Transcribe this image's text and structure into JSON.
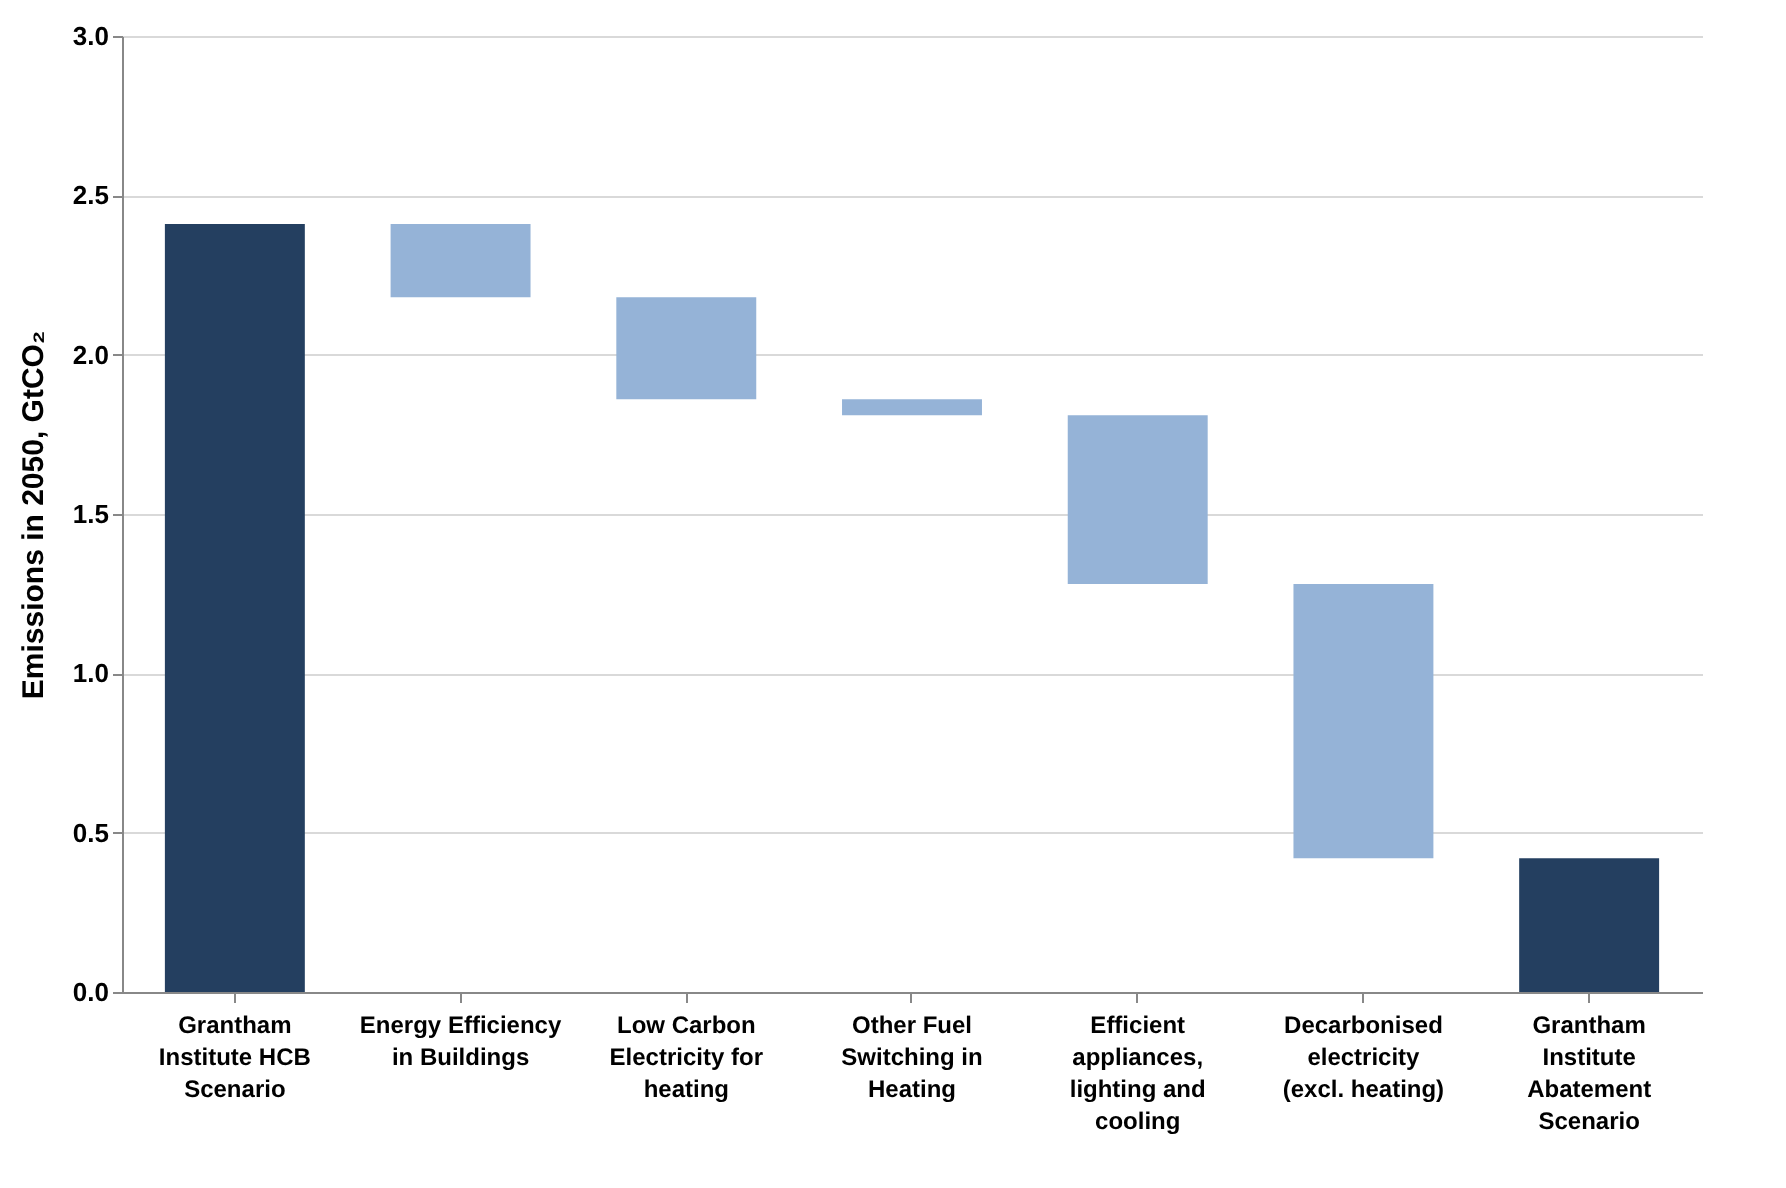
{
  "chart_data": {
    "type": "bar",
    "ylabel": "Emissions in 2050, GtCO₂",
    "categories": [
      "Grantham Institute HCB Scenario",
      "Energy Efficiency in Buildings",
      "Low Carbon Electricity for heating",
      "Other Fuel Switching in Heating",
      "Efficient appliances, lighting and cooling",
      "Decarbonised electricity (excl. heating)",
      "Grantham Institute Abatement Scenario"
    ],
    "base": [
      0,
      2.41,
      2.18,
      1.86,
      1.81,
      1.28,
      0
    ],
    "values": [
      2.41,
      -0.23,
      -0.32,
      -0.05,
      -0.53,
      -0.86,
      0.42
    ],
    "colors": [
      "#243f60",
      "#95b3d7",
      "#95b3d7",
      "#95b3d7",
      "#95b3d7",
      "#95b3d7",
      "#243f60"
    ],
    "ylim": [
      0,
      3
    ],
    "yticks": [
      {
        "value": 0,
        "label": "0.0"
      },
      {
        "value": 0.5,
        "label": "0.5"
      },
      {
        "value": 1,
        "label": "1.0"
      },
      {
        "value": 1.5,
        "label": "1.5"
      },
      {
        "value": 2,
        "label": "2.0"
      },
      {
        "value": 2.5,
        "label": "2.5"
      },
      {
        "value": 3,
        "label": "3.0"
      }
    ],
    "grid": "y"
  }
}
